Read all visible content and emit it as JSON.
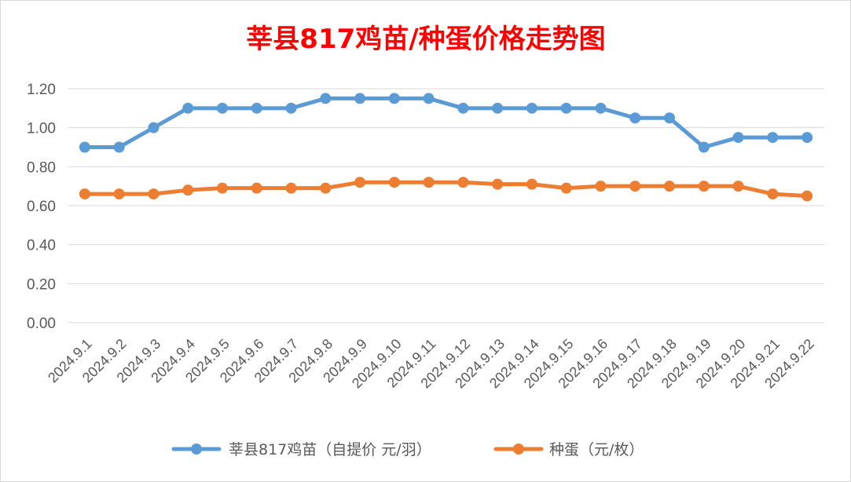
{
  "chart_data": {
    "type": "line",
    "title": "莘县817鸡苗/种蛋价格走势图",
    "categories": [
      "2024.9.1",
      "2024.9.2",
      "2024.9.3",
      "2024.9.4",
      "2024.9.5",
      "2024.9.6",
      "2024.9.7",
      "2024.9.8",
      "2024.9.9",
      "2024.9.10",
      "2024.9.11",
      "2024.9.12",
      "2024.9.13",
      "2024.9.14",
      "2024.9.15",
      "2024.9.16",
      "2024.9.17",
      "2024.9.18",
      "2024.9.19",
      "2024.9.20",
      "2024.9.21",
      "2024.9.22"
    ],
    "series": [
      {
        "name": "莘县817鸡苗（自提价 元/羽）",
        "color": "#5b9bd5",
        "values": [
          0.9,
          0.9,
          1.0,
          1.1,
          1.1,
          1.1,
          1.1,
          1.15,
          1.15,
          1.15,
          1.15,
          1.1,
          1.1,
          1.1,
          1.1,
          1.1,
          1.05,
          1.05,
          0.9,
          0.95,
          0.95,
          0.95
        ]
      },
      {
        "name": "种蛋（元/枚）",
        "color": "#ed7d31",
        "values": [
          0.66,
          0.66,
          0.66,
          0.68,
          0.69,
          0.69,
          0.69,
          0.69,
          0.72,
          0.72,
          0.72,
          0.72,
          0.71,
          0.71,
          0.69,
          0.7,
          0.7,
          0.7,
          0.7,
          0.7,
          0.66,
          0.65
        ]
      }
    ],
    "ylim": [
      0,
      1.2
    ],
    "yticks": [
      "0.00",
      "0.20",
      "0.40",
      "0.60",
      "0.80",
      "1.00",
      "1.20"
    ],
    "grid": true,
    "legend_position": "bottom"
  }
}
